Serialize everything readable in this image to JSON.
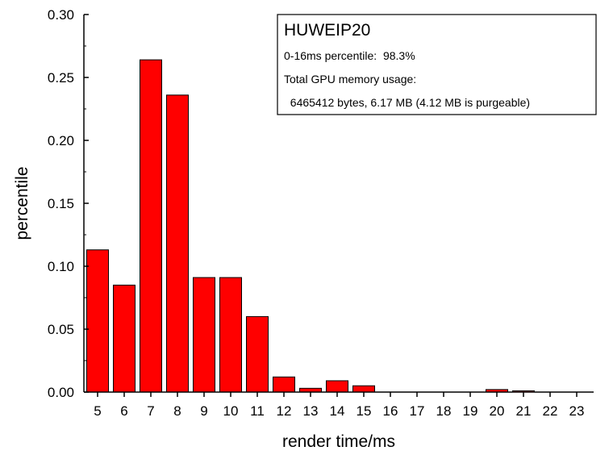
{
  "chart_data": {
    "type": "bar",
    "title": "",
    "xlabel": "render time/ms",
    "ylabel": "percentile",
    "categories": [
      "5",
      "6",
      "7",
      "8",
      "9",
      "10",
      "11",
      "12",
      "13",
      "14",
      "15",
      "16",
      "17",
      "18",
      "19",
      "20",
      "21",
      "22",
      "23"
    ],
    "values": [
      0.113,
      0.085,
      0.264,
      0.236,
      0.091,
      0.091,
      0.06,
      0.012,
      0.003,
      0.009,
      0.005,
      0,
      0,
      0,
      0,
      0.002,
      0.001,
      0,
      0
    ],
    "ylim": [
      0,
      0.3
    ],
    "yticks": [
      "0.00",
      "0.05",
      "0.10",
      "0.15",
      "0.20",
      "0.25",
      "0.30"
    ],
    "grid": false,
    "bar_color": "#ff0000",
    "bar_edge_color": "#000000",
    "annotation": {
      "title": "HUWEIP20",
      "lines": [
        "0-16ms percentile:  98.3%",
        "Total GPU memory usage:",
        "  6465412 bytes, 6.17 MB (4.12 MB is purgeable)"
      ],
      "placement": "top-right"
    }
  }
}
